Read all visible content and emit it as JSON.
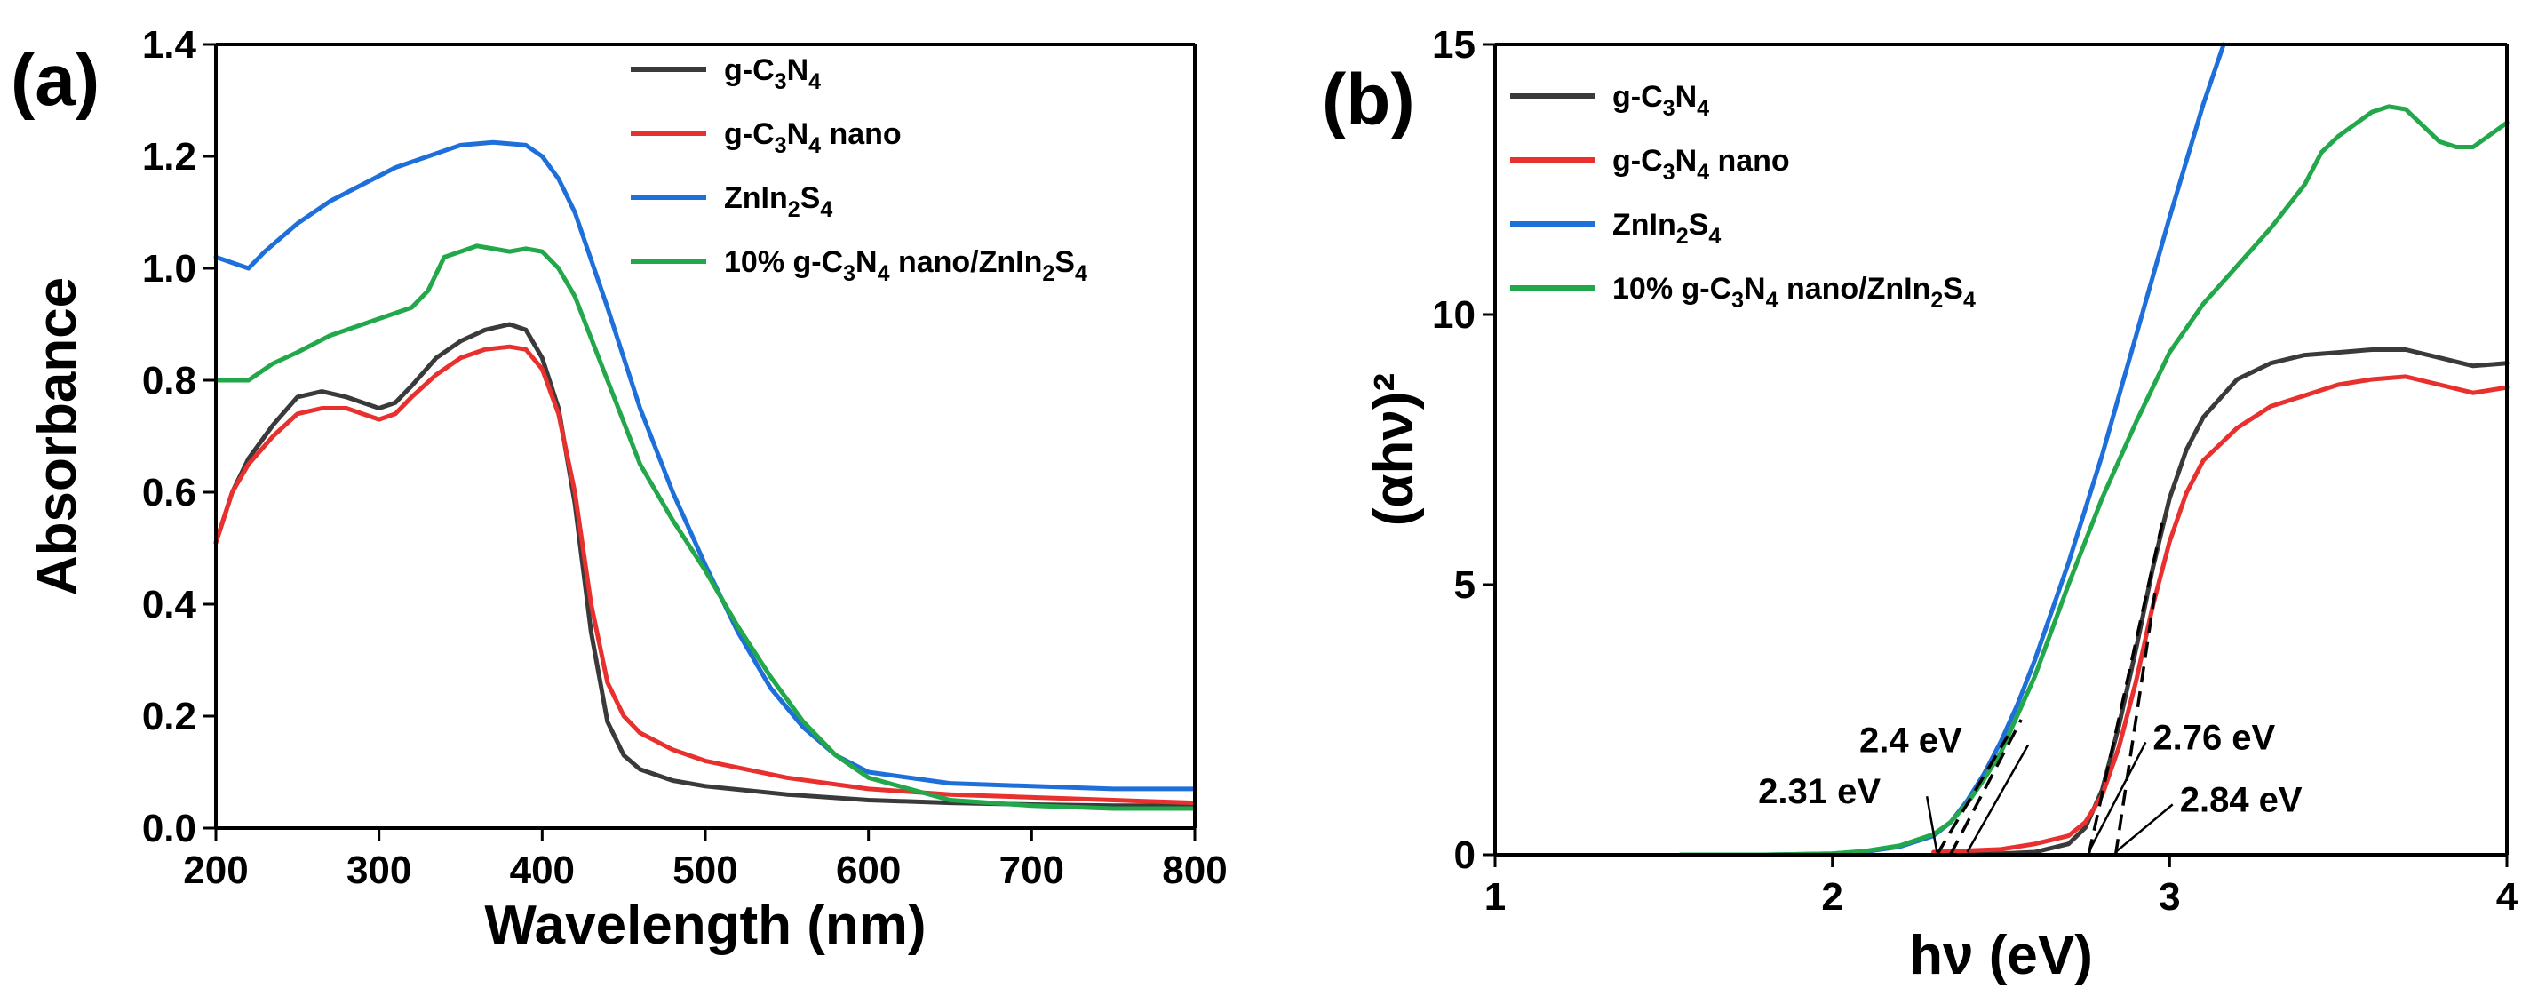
{
  "chart_data": [
    {
      "panel_label": "(a)",
      "type": "line",
      "xlabel": "Wavelength (nm)",
      "ylabel": "Absorbance",
      "xlim": [
        200,
        800
      ],
      "ylim": [
        0.0,
        1.4
      ],
      "xticks": [
        200,
        300,
        400,
        500,
        600,
        700,
        800
      ],
      "yticks": [
        0.0,
        0.2,
        0.4,
        0.6,
        0.8,
        1.0,
        1.2,
        1.4
      ],
      "xtick_labels": [
        "200",
        "300",
        "400",
        "500",
        "600",
        "700",
        "800"
      ],
      "ytick_labels": [
        "0.0",
        "0.2",
        "0.4",
        "0.6",
        "0.8",
        "1.0",
        "1.2",
        "1.4"
      ],
      "legend_position": "top-right",
      "series": [
        {
          "name": "g-C3N4",
          "legend": [
            "g-C",
            "3",
            "N",
            "4",
            ""
          ],
          "color": "#3a3a3a",
          "x": [
            200,
            210,
            220,
            235,
            250,
            265,
            280,
            300,
            310,
            320,
            335,
            350,
            365,
            380,
            390,
            400,
            410,
            420,
            430,
            440,
            450,
            460,
            480,
            500,
            550,
            600,
            650,
            700,
            750,
            800
          ],
          "y": [
            0.51,
            0.6,
            0.66,
            0.72,
            0.77,
            0.78,
            0.77,
            0.75,
            0.76,
            0.79,
            0.84,
            0.87,
            0.89,
            0.9,
            0.89,
            0.84,
            0.75,
            0.58,
            0.35,
            0.19,
            0.13,
            0.105,
            0.085,
            0.075,
            0.06,
            0.05,
            0.045,
            0.042,
            0.04,
            0.04
          ]
        },
        {
          "name": "g-C3N4 nano",
          "legend": [
            "g-C",
            "3",
            "N",
            "4",
            " nano"
          ],
          "color": "#e8302e",
          "x": [
            200,
            210,
            220,
            235,
            250,
            265,
            280,
            300,
            310,
            320,
            335,
            350,
            365,
            380,
            390,
            400,
            410,
            420,
            430,
            440,
            450,
            460,
            480,
            500,
            550,
            600,
            650,
            700,
            750,
            800
          ],
          "y": [
            0.51,
            0.6,
            0.65,
            0.7,
            0.74,
            0.75,
            0.75,
            0.73,
            0.74,
            0.77,
            0.81,
            0.84,
            0.855,
            0.86,
            0.855,
            0.82,
            0.74,
            0.6,
            0.4,
            0.26,
            0.2,
            0.17,
            0.14,
            0.12,
            0.09,
            0.07,
            0.06,
            0.055,
            0.05,
            0.045
          ]
        },
        {
          "name": "ZnIn2S4",
          "legend": [
            "ZnIn",
            "2",
            "S",
            "4",
            ""
          ],
          "color": "#1e6fd9",
          "x": [
            200,
            210,
            220,
            230,
            250,
            270,
            290,
            310,
            330,
            350,
            370,
            390,
            400,
            410,
            420,
            440,
            460,
            480,
            500,
            520,
            540,
            560,
            580,
            600,
            650,
            700,
            750,
            800
          ],
          "y": [
            1.02,
            1.01,
            1.0,
            1.03,
            1.08,
            1.12,
            1.15,
            1.18,
            1.2,
            1.22,
            1.225,
            1.22,
            1.2,
            1.16,
            1.1,
            0.93,
            0.75,
            0.6,
            0.47,
            0.35,
            0.25,
            0.18,
            0.13,
            0.1,
            0.08,
            0.075,
            0.07,
            0.07
          ]
        },
        {
          "name": "10% g-C3N4 nano/ZnIn2S4",
          "legend": [
            "10% g-C",
            "3",
            "N",
            "4",
            " nano/ZnIn",
            "2",
            "S",
            "4",
            ""
          ],
          "color": "#22a84a",
          "x": [
            200,
            210,
            220,
            235,
            250,
            270,
            290,
            310,
            320,
            330,
            340,
            350,
            360,
            370,
            380,
            390,
            400,
            410,
            420,
            440,
            460,
            480,
            500,
            520,
            540,
            560,
            580,
            600,
            650,
            700,
            750,
            800
          ],
          "y": [
            0.8,
            0.8,
            0.8,
            0.83,
            0.85,
            0.88,
            0.9,
            0.92,
            0.93,
            0.96,
            1.02,
            1.03,
            1.04,
            1.035,
            1.03,
            1.035,
            1.03,
            1.0,
            0.95,
            0.8,
            0.65,
            0.55,
            0.46,
            0.36,
            0.27,
            0.19,
            0.13,
            0.09,
            0.05,
            0.04,
            0.035,
            0.035
          ]
        }
      ]
    },
    {
      "panel_label": "(b)",
      "type": "line",
      "xlabel": "hν (eV)",
      "ylabel": "(αhν)²",
      "xlim": [
        1,
        4
      ],
      "ylim": [
        0,
        15
      ],
      "xticks": [
        1,
        2,
        3,
        4
      ],
      "yticks": [
        0,
        5,
        10,
        15
      ],
      "xtick_labels": [
        "1",
        "2",
        "3",
        "4"
      ],
      "ytick_labels": [
        "0",
        "5",
        "10",
        "15"
      ],
      "legend_position": "top-left",
      "series": [
        {
          "name": "g-C3N4",
          "legend": [
            "g-C",
            "3",
            "N",
            "4",
            ""
          ],
          "color": "#3a3a3a",
          "x": [
            2.3,
            2.5,
            2.6,
            2.7,
            2.75,
            2.8,
            2.85,
            2.9,
            2.95,
            3.0,
            3.05,
            3.1,
            3.2,
            3.3,
            3.4,
            3.5,
            3.6,
            3.7,
            3.8,
            3.9,
            4.0
          ],
          "y": [
            0.0,
            0.02,
            0.05,
            0.2,
            0.5,
            1.2,
            2.4,
            3.8,
            5.3,
            6.6,
            7.5,
            8.1,
            8.8,
            9.1,
            9.25,
            9.3,
            9.35,
            9.35,
            9.2,
            9.05,
            9.1
          ]
        },
        {
          "name": "g-C3N4 nano",
          "legend": [
            "g-C",
            "3",
            "N",
            "4",
            " nano"
          ],
          "color": "#e8302e",
          "x": [
            2.3,
            2.5,
            2.6,
            2.7,
            2.75,
            2.8,
            2.85,
            2.9,
            2.95,
            3.0,
            3.05,
            3.1,
            3.2,
            3.3,
            3.4,
            3.5,
            3.6,
            3.7,
            3.8,
            3.9,
            4.0
          ],
          "y": [
            0.05,
            0.1,
            0.2,
            0.35,
            0.6,
            1.1,
            2.0,
            3.2,
            4.6,
            5.8,
            6.7,
            7.3,
            7.9,
            8.3,
            8.5,
            8.7,
            8.8,
            8.85,
            8.7,
            8.55,
            8.65
          ]
        },
        {
          "name": "ZnIn2S4",
          "legend": [
            "ZnIn",
            "2",
            "S",
            "4",
            ""
          ],
          "color": "#1e6fd9",
          "x": [
            1.55,
            1.8,
            2.0,
            2.1,
            2.2,
            2.3,
            2.35,
            2.4,
            2.45,
            2.5,
            2.55,
            2.6,
            2.7,
            2.8,
            2.9,
            3.0,
            3.1,
            3.16
          ],
          "y": [
            0.0,
            0.0,
            0.02,
            0.06,
            0.15,
            0.35,
            0.6,
            1.0,
            1.5,
            2.1,
            2.8,
            3.6,
            5.4,
            7.4,
            9.6,
            11.8,
            13.9,
            15.0
          ]
        },
        {
          "name": "10% g-C3N4 nano/ZnIn2S4",
          "legend": [
            "10% g-C",
            "3",
            "N",
            "4",
            " nano/ZnIn",
            "2",
            "S",
            "4",
            ""
          ],
          "color": "#22a84a",
          "x": [
            1.55,
            1.8,
            2.0,
            2.1,
            2.2,
            2.3,
            2.35,
            2.4,
            2.45,
            2.5,
            2.55,
            2.6,
            2.7,
            2.8,
            2.9,
            3.0,
            3.1,
            3.2,
            3.3,
            3.4,
            3.45,
            3.5,
            3.6,
            3.65,
            3.7,
            3.75,
            3.8,
            3.85,
            3.9,
            4.0
          ],
          "y": [
            0.0,
            0.0,
            0.02,
            0.07,
            0.17,
            0.38,
            0.6,
            0.95,
            1.4,
            1.9,
            2.6,
            3.3,
            5.0,
            6.6,
            8.0,
            9.3,
            10.2,
            10.9,
            11.6,
            12.4,
            13.0,
            13.3,
            13.75,
            13.85,
            13.8,
            13.5,
            13.2,
            13.1,
            13.1,
            13.55
          ]
        }
      ],
      "tangent_fits": [
        {
          "x": [
            2.35,
            2.56
          ],
          "y": [
            0.0,
            2.5
          ]
        },
        {
          "x": [
            2.31,
            2.52
          ],
          "y": [
            0.0,
            2.2
          ]
        },
        {
          "x": [
            2.76,
            2.98
          ],
          "y": [
            0.0,
            6.2
          ]
        },
        {
          "x": [
            2.84,
            2.96
          ],
          "y": [
            0.0,
            5.0
          ]
        }
      ],
      "annotations": [
        {
          "text": "2.4 eV",
          "point": [
            2.4,
            0.05
          ],
          "label_at": [
            2.08,
            1.9
          ]
        },
        {
          "text": "2.31 eV",
          "point": [
            2.31,
            0.05
          ],
          "label_at": [
            1.78,
            0.95
          ]
        },
        {
          "text": "2.76 eV",
          "point": [
            2.76,
            0.05
          ],
          "label_at": [
            2.95,
            1.95
          ]
        },
        {
          "text": "2.84 eV",
          "point": [
            2.84,
            0.05
          ],
          "label_at": [
            3.03,
            0.8
          ]
        }
      ]
    }
  ]
}
